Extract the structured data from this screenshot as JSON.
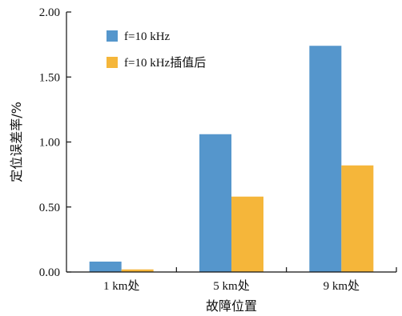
{
  "chart_data": {
    "type": "bar",
    "categories": [
      "1 km处",
      "5 km处",
      "9 km处"
    ],
    "series": [
      {
        "name": "f=10 kHz",
        "color": "#5596cc",
        "values": [
          0.08,
          1.06,
          1.74
        ]
      },
      {
        "name": "f=10 kHz插值后",
        "color": "#f5b63a",
        "values": [
          0.02,
          0.58,
          0.82
        ]
      }
    ],
    "title": "",
    "xlabel": "故障位置",
    "ylabel": "定位误差率/%",
    "ylim": [
      0,
      2.0
    ],
    "yticks": [
      "0.00",
      "0.50",
      "1.00",
      "1.50",
      "2.00"
    ],
    "grid": false,
    "legend_position": "top-left"
  }
}
